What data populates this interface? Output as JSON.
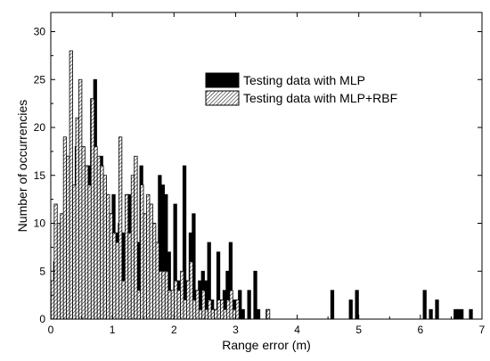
{
  "chart_data": {
    "type": "bar",
    "title": "",
    "xlabel": "Range error (m)",
    "ylabel": "Number of occurrencies",
    "xlim": [
      0,
      7
    ],
    "ylim": [
      0,
      32
    ],
    "xticks": [
      0,
      1,
      2,
      3,
      4,
      5,
      6,
      7
    ],
    "yticks": [
      0,
      5,
      10,
      15,
      20,
      25,
      30
    ],
    "grid": false,
    "legend_position": "top-right",
    "bin_width": 0.05,
    "series": [
      {
        "name": "Testing data with MLP",
        "fill": "#000000",
        "x": [
          0.07,
          0.12,
          0.17,
          0.22,
          0.27,
          0.32,
          0.37,
          0.42,
          0.47,
          0.52,
          0.57,
          0.62,
          0.67,
          0.72,
          0.77,
          0.82,
          0.87,
          0.92,
          0.97,
          1.02,
          1.07,
          1.12,
          1.17,
          1.22,
          1.27,
          1.32,
          1.37,
          1.42,
          1.47,
          1.52,
          1.57,
          1.62,
          1.67,
          1.72,
          1.77,
          1.82,
          1.87,
          1.92,
          1.97,
          2.02,
          2.07,
          2.12,
          2.17,
          2.22,
          2.27,
          2.32,
          2.37,
          2.42,
          2.47,
          2.52,
          2.57,
          2.62,
          2.67,
          2.72,
          2.77,
          2.82,
          2.87,
          2.92,
          2.97,
          3.02,
          3.07,
          3.12,
          3.22,
          3.32,
          3.37,
          3.52,
          4.57,
          4.87,
          4.97,
          6.07,
          6.17,
          6.27,
          6.57,
          6.62,
          6.67,
          6.82
        ],
        "values": [
          6,
          9,
          1,
          1,
          17,
          17,
          5,
          18,
          19,
          4,
          16,
          16,
          23,
          25,
          14,
          17,
          8,
          8,
          11,
          13,
          9,
          10,
          9,
          9,
          13,
          7,
          15,
          8,
          16,
          8,
          5,
          6,
          10,
          4,
          15,
          14,
          13,
          7,
          1,
          12,
          4,
          2,
          16,
          4,
          9,
          11,
          1,
          4,
          5,
          4,
          8,
          2,
          1,
          7,
          1,
          3,
          5,
          8,
          2,
          1,
          3,
          1,
          3,
          5,
          1,
          1,
          3,
          2,
          3,
          3,
          1,
          2,
          1,
          1,
          1,
          1
        ]
      },
      {
        "name": "Testing data with MLP+RBF",
        "fill": "#ffffff",
        "x": [
          0.03,
          0.08,
          0.13,
          0.18,
          0.23,
          0.28,
          0.33,
          0.38,
          0.43,
          0.48,
          0.53,
          0.58,
          0.63,
          0.68,
          0.73,
          0.78,
          0.83,
          0.88,
          0.93,
          0.98,
          1.03,
          1.08,
          1.13,
          1.18,
          1.23,
          1.28,
          1.33,
          1.38,
          1.43,
          1.48,
          1.53,
          1.58,
          1.63,
          1.68,
          1.73,
          1.78,
          1.83,
          1.88,
          1.93,
          1.98,
          2.03,
          2.08,
          2.13,
          2.18,
          2.23,
          2.28,
          2.33,
          2.38,
          2.43,
          2.48,
          2.53,
          2.58,
          2.63,
          2.68,
          2.73,
          2.78,
          2.83,
          2.88,
          2.93,
          2.98,
          3.03,
          3.53
        ],
        "values": [
          4,
          12,
          10,
          11,
          19,
          17,
          28,
          14,
          21,
          25,
          18,
          16,
          14,
          23,
          18,
          17,
          16,
          15,
          13,
          11,
          9,
          8,
          19,
          4,
          13,
          9,
          15,
          17,
          3,
          14,
          11,
          13,
          12,
          10,
          8,
          5,
          5,
          5,
          3,
          3,
          4,
          3,
          5,
          2,
          4,
          6,
          2,
          3,
          1,
          3,
          1,
          2,
          1,
          1,
          2,
          2,
          1,
          2,
          3,
          1,
          2,
          1
        ]
      }
    ]
  }
}
